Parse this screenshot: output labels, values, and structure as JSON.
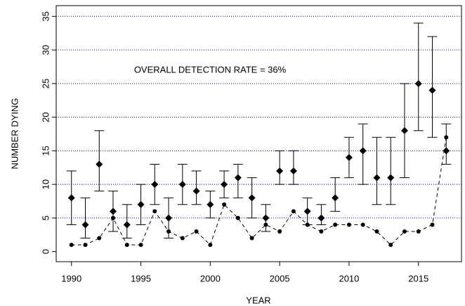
{
  "chart_data": {
    "type": "errorbar",
    "x_label": "YEAR",
    "y_label": "NUMBER DYING",
    "annotation": "OVERALL DETECTION RATE = 36%",
    "x": [
      1990,
      1991,
      1992,
      1993,
      1994,
      1995,
      1996,
      1997,
      1998,
      1999,
      2000,
      2001,
      2002,
      2003,
      2004,
      2005,
      2006,
      2007,
      2008,
      2009,
      2010,
      2011,
      2012,
      2013,
      2014,
      2015,
      2016,
      2017
    ],
    "series": [
      {
        "color": "#000000",
        "marker": "diamond",
        "values": [
          8,
          4,
          13,
          6,
          4,
          7,
          10,
          5,
          10,
          9,
          7,
          10,
          11,
          8,
          5,
          12,
          12,
          6,
          5,
          8,
          14,
          15,
          11,
          11,
          18,
          25,
          24,
          15
        ],
        "lower": [
          4,
          2,
          9,
          3,
          2,
          4,
          7,
          2,
          7,
          7,
          5,
          8,
          8,
          5,
          3,
          10,
          10,
          4,
          4,
          6,
          11,
          10,
          7,
          7,
          11,
          18,
          17,
          13
        ],
        "upper": [
          12,
          8,
          18,
          9,
          7,
          10,
          13,
          8,
          13,
          12,
          9,
          12,
          13,
          11,
          7,
          15,
          15,
          8,
          7,
          11,
          17,
          19,
          17,
          17,
          25,
          34,
          32,
          19
        ]
      },
      {
        "color": "#000000",
        "marker": "circle",
        "line": "dashed",
        "values": [
          1,
          1,
          2,
          5,
          1,
          1,
          6,
          3,
          2,
          3,
          1,
          7,
          5,
          2,
          4,
          3,
          6,
          4,
          3,
          4,
          4,
          4,
          3,
          1,
          3,
          3,
          4,
          17
        ]
      }
    ],
    "xlim": [
      1988.9,
      2018.1
    ],
    "ylim": [
      -1.5,
      36.6
    ],
    "xticks": [
      1990,
      1995,
      2000,
      2005,
      2010,
      2015
    ],
    "yticks": [
      0,
      5,
      10,
      15,
      20,
      25,
      30,
      35
    ],
    "grid": true,
    "grid_color": "#0000cc"
  }
}
